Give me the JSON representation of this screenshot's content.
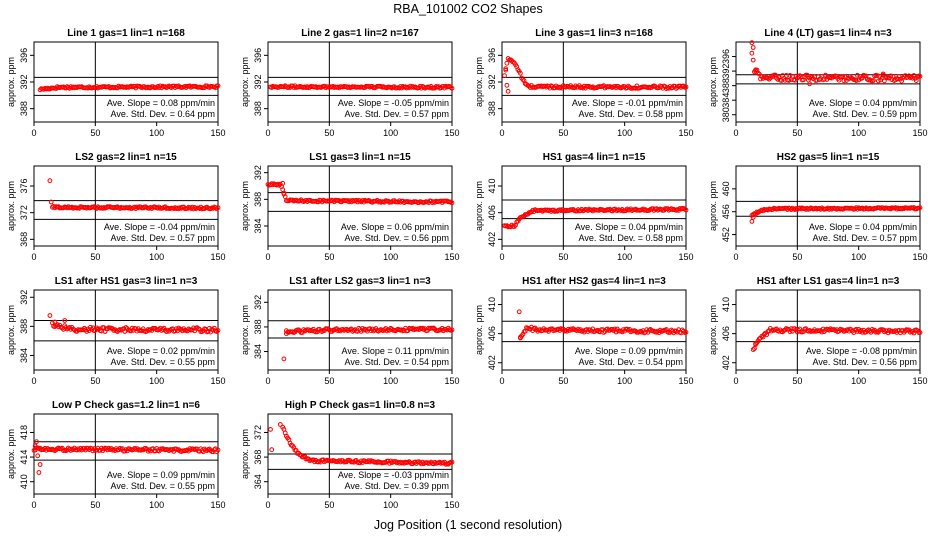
{
  "figure": {
    "title": "RBA_101002  CO2 Shapes",
    "xlabel": "Jog Position (1 second resolution)",
    "ylabel": "approx. ppm",
    "slope_prefix": "Ave. Slope = ",
    "slope_unit": " ppm/min",
    "std_prefix": "Ave. Std. Dev. = ",
    "std_unit": " ppm",
    "point_color": "#ff0000",
    "line_color": "#000000"
  },
  "chart_data": [
    {
      "type": "scatter",
      "title": "Line 1 gas=1 lin=1 n=168",
      "xlim": [
        0,
        150
      ],
      "xticks": [
        0,
        50,
        100,
        150
      ],
      "ylim": [
        386,
        398
      ],
      "yticks": [
        388,
        392,
        396
      ],
      "hlines": [
        392.7,
        390.0
      ],
      "vline": 50,
      "slope": "0.08",
      "std": "0.64",
      "base": 391.2,
      "noise": 0.15,
      "profile": [
        [
          5,
          390.9
        ],
        [
          10,
          391.0
        ],
        [
          20,
          391.2
        ],
        [
          150,
          391.3
        ]
      ]
    },
    {
      "type": "scatter",
      "title": "Line 2 gas=1 lin=2 n=167",
      "xlim": [
        0,
        150
      ],
      "xticks": [
        0,
        50,
        100,
        150
      ],
      "ylim": [
        386,
        398
      ],
      "yticks": [
        388,
        392,
        396
      ],
      "hlines": [
        392.7,
        390.0
      ],
      "vline": 50,
      "slope": "-0.05",
      "std": "0.57",
      "base": 391.3,
      "noise": 0.15,
      "profile": [
        [
          2,
          391.3
        ],
        [
          150,
          391.2
        ]
      ]
    },
    {
      "type": "scatter",
      "title": "Line 3 gas=1 lin=3 n=168",
      "xlim": [
        0,
        150
      ],
      "xticks": [
        0,
        50,
        100,
        150
      ],
      "ylim": [
        386,
        398
      ],
      "yticks": [
        388,
        392,
        396
      ],
      "hlines": [
        392.7,
        390.0
      ],
      "vline": 50,
      "slope": "-0.01",
      "std": "0.58",
      "base": 391.2,
      "noise": 0.2,
      "profile": [
        [
          2,
          393.0
        ],
        [
          5,
          395.5
        ],
        [
          10,
          395.0
        ],
        [
          14,
          393.5
        ],
        [
          18,
          392.0
        ],
        [
          22,
          391.3
        ],
        [
          150,
          391.2
        ]
      ],
      "extras": [
        [
          4,
          391.5
        ],
        [
          5,
          390.6
        ],
        [
          3,
          394.0
        ]
      ]
    },
    {
      "type": "scatter",
      "title": "Line 4 (LT) gas=1 lin=4 n=3",
      "xlim": [
        0,
        150
      ],
      "xticks": [
        0,
        50,
        100,
        150
      ],
      "ylim": [
        378,
        400
      ],
      "yticks": [
        380,
        384,
        388,
        392,
        396
      ],
      "hlines": [
        391.0,
        388.5
      ],
      "vline": 50,
      "slope": "0.04",
      "std": "0.59",
      "base": 389.8,
      "noise": 0.8,
      "profile": [
        [
          13,
          397.0
        ],
        [
          15,
          392.5
        ],
        [
          20,
          390.2
        ],
        [
          150,
          390.0
        ]
      ],
      "extras": [
        [
          13,
          399.8
        ],
        [
          14,
          398.5
        ],
        [
          16,
          392.0
        ],
        [
          60,
          388.5
        ],
        [
          120,
          391.2
        ]
      ]
    },
    {
      "type": "scatter",
      "title": "LS2 gas=2 lin=1 n=15",
      "xlim": [
        0,
        150
      ],
      "xticks": [
        0,
        50,
        100,
        150
      ],
      "ylim": [
        367,
        379
      ],
      "yticks": [
        368,
        372,
        376
      ],
      "hlines": [
        373.8,
        371.0
      ],
      "vline": 50,
      "slope": "-0.04",
      "std": "0.57",
      "base": 372.7,
      "noise": 0.15,
      "profile": [
        [
          15,
          372.8
        ],
        [
          150,
          372.7
        ]
      ],
      "extras": [
        [
          13,
          376.8
        ],
        [
          14,
          373.6
        ]
      ]
    },
    {
      "type": "scatter",
      "title": "LS1 gas=3 lin=1 n=15",
      "xlim": [
        0,
        150
      ],
      "xticks": [
        0,
        50,
        100,
        150
      ],
      "ylim": [
        381,
        393
      ],
      "yticks": [
        384,
        388,
        392
      ],
      "hlines": [
        389.0,
        386.2
      ],
      "vline": 50,
      "slope": "0.06",
      "std": "0.56",
      "base": 387.5,
      "noise": 0.15,
      "profile": [
        [
          0,
          390.2
        ],
        [
          10,
          390.2
        ],
        [
          12,
          389.6
        ],
        [
          15,
          387.8
        ],
        [
          150,
          387.6
        ]
      ],
      "extras": [
        [
          13,
          388.8
        ],
        [
          12,
          390.4
        ]
      ]
    },
    {
      "type": "scatter",
      "title": "HS1 gas=4 lin=1 n=15",
      "xlim": [
        0,
        150
      ],
      "xticks": [
        0,
        50,
        100,
        150
      ],
      "ylim": [
        401,
        413
      ],
      "yticks": [
        402,
        406,
        410
      ],
      "hlines": [
        407.9,
        405.1
      ],
      "vline": 50,
      "slope": "0.04",
      "std": "0.58",
      "base": 406.5,
      "noise": 0.15,
      "profile": [
        [
          2,
          404.0
        ],
        [
          10,
          404.0
        ],
        [
          15,
          405.2
        ],
        [
          25,
          406.3
        ],
        [
          150,
          406.5
        ]
      ]
    },
    {
      "type": "scatter",
      "title": "HS2 gas=5 lin=1 n=15",
      "xlim": [
        0,
        150
      ],
      "xticks": [
        0,
        50,
        100,
        150
      ],
      "ylim": [
        450,
        464
      ],
      "yticks": [
        452,
        456,
        460
      ],
      "hlines": [
        457.8,
        455.2
      ],
      "vline": 50,
      "slope": "0.04",
      "std": "0.57",
      "base": 456.5,
      "noise": 0.15,
      "profile": [
        [
          13,
          455.3
        ],
        [
          20,
          456.2
        ],
        [
          30,
          456.5
        ],
        [
          150,
          456.6
        ]
      ],
      "extras": [
        [
          13,
          454.3
        ],
        [
          14,
          455.0
        ]
      ]
    },
    {
      "type": "scatter",
      "title": "LS1 after HS1 gas=3 lin=1 n=3",
      "xlim": [
        0,
        150
      ],
      "xticks": [
        0,
        50,
        100,
        150
      ],
      "ylim": [
        382,
        393
      ],
      "yticks": [
        384,
        388,
        392
      ],
      "hlines": [
        388.8,
        386.0
      ],
      "vline": 50,
      "slope": "0.02",
      "std": "0.55",
      "base": 387.4,
      "noise": 0.3,
      "profile": [
        [
          15,
          388.3
        ],
        [
          30,
          387.6
        ],
        [
          150,
          387.5
        ]
      ],
      "extras": [
        [
          13,
          389.5
        ],
        [
          17,
          388.6
        ],
        [
          25,
          388.8
        ]
      ]
    },
    {
      "type": "scatter",
      "title": "LS1 after LS2 gas=3 lin=1 n=3",
      "xlim": [
        0,
        150
      ],
      "xticks": [
        0,
        50,
        100,
        150
      ],
      "ylim": [
        381,
        394
      ],
      "yticks": [
        384,
        388,
        392
      ],
      "hlines": [
        389.0,
        386.2
      ],
      "vline": 50,
      "slope": "0.11",
      "std": "0.54",
      "base": 387.5,
      "noise": 0.25,
      "profile": [
        [
          15,
          387.2
        ],
        [
          50,
          387.5
        ],
        [
          150,
          387.6
        ]
      ],
      "extras": [
        [
          13,
          382.8
        ],
        [
          15,
          386.9
        ]
      ]
    },
    {
      "type": "scatter",
      "title": "HS1 after HS2 gas=4 lin=1 n=3",
      "xlim": [
        0,
        150
      ],
      "xticks": [
        0,
        50,
        100,
        150
      ],
      "ylim": [
        401,
        412
      ],
      "yticks": [
        402,
        406,
        410
      ],
      "hlines": [
        407.7,
        404.9
      ],
      "vline": 50,
      "slope": "0.09",
      "std": "0.54",
      "base": 406.3,
      "noise": 0.25,
      "profile": [
        [
          15,
          405.3
        ],
        [
          20,
          406.8
        ],
        [
          30,
          406.5
        ],
        [
          150,
          406.3
        ]
      ],
      "extras": [
        [
          14,
          409.0
        ],
        [
          15,
          405.4
        ]
      ]
    },
    {
      "type": "scatter",
      "title": "HS1 after LS1 gas=4 lin=1 n=3",
      "xlim": [
        0,
        150
      ],
      "xticks": [
        0,
        50,
        100,
        150
      ],
      "ylim": [
        401,
        412
      ],
      "yticks": [
        402,
        406,
        410
      ],
      "hlines": [
        407.7,
        404.9
      ],
      "vline": 50,
      "slope": "-0.08",
      "std": "0.56",
      "base": 406.3,
      "noise": 0.25,
      "profile": [
        [
          15,
          404.2
        ],
        [
          20,
          405.3
        ],
        [
          28,
          406.5
        ],
        [
          150,
          406.3
        ]
      ],
      "extras": [
        [
          14,
          403.8
        ],
        [
          16,
          404.5
        ]
      ]
    },
    {
      "type": "scatter",
      "title": "Low P Check gas=1.2 lin=1 n=6",
      "xlim": [
        0,
        150
      ],
      "xticks": [
        0,
        50,
        100,
        150
      ],
      "ylim": [
        408,
        421
      ],
      "yticks": [
        410,
        414,
        418
      ],
      "hlines": [
        416.5,
        413.5
      ],
      "vline": 50,
      "slope": "0.09",
      "std": "0.55",
      "base": 415.0,
      "noise": 0.25,
      "profile": [
        [
          0,
          415.3
        ],
        [
          150,
          415.1
        ]
      ],
      "extras": [
        [
          2,
          416.5
        ],
        [
          4,
          411.5
        ],
        [
          5,
          412.8
        ],
        [
          3,
          414.2
        ],
        [
          1,
          415.8
        ]
      ]
    },
    {
      "type": "scatter",
      "title": "High P Check gas=1 lin=0.8 n=3",
      "xlim": [
        0,
        150
      ],
      "xticks": [
        0,
        50,
        100,
        150
      ],
      "ylim": [
        362,
        375
      ],
      "yticks": [
        364,
        368,
        372
      ],
      "hlines": [
        368.5,
        366.0
      ],
      "vline": 50,
      "slope": "-0.03",
      "std": "0.39",
      "base": 367.0,
      "noise": 0.2,
      "profile": [
        [
          12,
          373.0
        ],
        [
          18,
          370.2
        ],
        [
          25,
          368.5
        ],
        [
          35,
          367.4
        ],
        [
          150,
          367.0
        ]
      ],
      "extras": [
        [
          2,
          372.5
        ],
        [
          3,
          369.2
        ],
        [
          10,
          373.3
        ]
      ]
    }
  ]
}
